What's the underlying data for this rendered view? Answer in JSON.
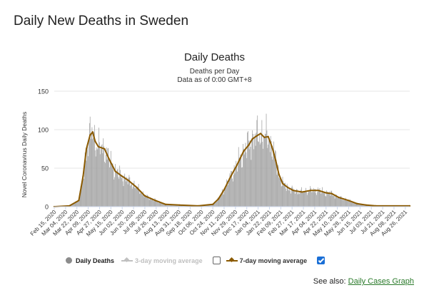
{
  "page": {
    "title": "Daily New Deaths in Sweden",
    "see_also_label": "See also:",
    "see_also_link": "Daily Cases Graph"
  },
  "legend": {
    "daily": "Daily Deaths",
    "avg3": "3-day moving average",
    "avg7": "7-day moving average",
    "avg3_checked": false,
    "avg7_checked": true
  },
  "colors": {
    "bars": "#a6a6a6",
    "avg7": "#8b5a00",
    "avg3": "#c0c0c0",
    "grid": "#e6e6e6"
  },
  "chart_data": {
    "type": "bar",
    "title": "Daily Deaths",
    "subtitle": "Deaths per Day",
    "subtitle2": "Data as of 0:00 GMT+8",
    "ylabel": "Novel Coronavirus Daily Deaths",
    "ylim": [
      0,
      150
    ],
    "yticks": [
      0,
      50,
      100,
      150
    ],
    "x_start": "2020-02-15",
    "x_end": "2021-09-02",
    "xticks": [
      "Feb 15, 2020",
      "Mar 04, 2020",
      "Mar 22, 2020",
      "Apr 09, 2020",
      "Apr 27, 2020",
      "May 15, 2020",
      "Jun 02, 2020",
      "Jun 20, 2020",
      "Jul 08, 2020",
      "Jul 26, 2020",
      "Aug 13, 2020",
      "Aug 31, 2020",
      "Sep 18, 2020",
      "Oct 06, 2020",
      "Oct 24, 2020",
      "Nov 11, 2020",
      "Nov 29, 2020",
      "Dec 17, 2020",
      "Jan 04, 2021",
      "Jan 22, 2021",
      "Feb 09, 2021",
      "Feb 27, 2021",
      "Mar 17, 2021",
      "Apr 04, 2021",
      "Apr 22, 2021",
      "May 10, 2021",
      "May 28, 2021",
      "Jun 15, 2021",
      "Jul 03, 2021",
      "Jul 21, 2021",
      "Aug 08, 2021",
      "Aug 26, 2021"
    ],
    "series": [
      {
        "name": "7-day moving average",
        "points": [
          [
            "2020-02-15",
            0
          ],
          [
            "2020-03-10",
            1
          ],
          [
            "2020-03-25",
            8
          ],
          [
            "2020-04-01",
            40
          ],
          [
            "2020-04-06",
            75
          ],
          [
            "2020-04-12",
            93
          ],
          [
            "2020-04-16",
            97
          ],
          [
            "2020-04-20",
            85
          ],
          [
            "2020-04-25",
            78
          ],
          [
            "2020-05-05",
            75
          ],
          [
            "2020-05-12",
            62
          ],
          [
            "2020-05-22",
            46
          ],
          [
            "2020-06-01",
            40
          ],
          [
            "2020-06-12",
            34
          ],
          [
            "2020-06-25",
            25
          ],
          [
            "2020-07-08",
            14
          ],
          [
            "2020-07-25",
            8
          ],
          [
            "2020-08-10",
            3
          ],
          [
            "2020-09-01",
            2
          ],
          [
            "2020-10-01",
            1
          ],
          [
            "2020-10-24",
            3
          ],
          [
            "2020-11-02",
            10
          ],
          [
            "2020-11-11",
            22
          ],
          [
            "2020-11-22",
            40
          ],
          [
            "2020-12-02",
            55
          ],
          [
            "2020-12-12",
            72
          ],
          [
            "2020-12-20",
            80
          ],
          [
            "2020-12-26",
            88
          ],
          [
            "2021-01-02",
            92
          ],
          [
            "2021-01-08",
            95
          ],
          [
            "2021-01-14",
            90
          ],
          [
            "2021-01-20",
            91
          ],
          [
            "2021-01-26",
            78
          ],
          [
            "2021-02-01",
            60
          ],
          [
            "2021-02-06",
            42
          ],
          [
            "2021-02-12",
            30
          ],
          [
            "2021-02-20",
            25
          ],
          [
            "2021-03-01",
            21
          ],
          [
            "2021-03-15",
            19
          ],
          [
            "2021-03-28",
            21
          ],
          [
            "2021-04-10",
            21
          ],
          [
            "2021-04-22",
            18
          ],
          [
            "2021-05-01",
            17
          ],
          [
            "2021-05-12",
            12
          ],
          [
            "2021-05-28",
            8
          ],
          [
            "2021-06-10",
            4
          ],
          [
            "2021-06-25",
            2
          ],
          [
            "2021-07-10",
            1
          ],
          [
            "2021-09-02",
            1
          ]
        ]
      }
    ]
  }
}
